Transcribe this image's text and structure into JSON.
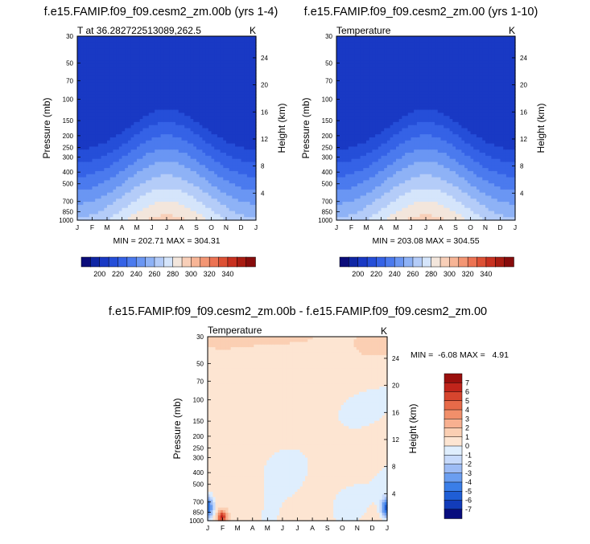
{
  "palette": {
    "t": [
      "#0b0c7a",
      "#0f26a4",
      "#1939c4",
      "#254ed8",
      "#3562e6",
      "#4b7aee",
      "#6a96f3",
      "#8eb2f6",
      "#b4ccf8",
      "#d5e5fb",
      "#f3e6dc",
      "#f8cfb8",
      "#f7b596",
      "#f39674",
      "#ec7353",
      "#dd5135",
      "#c83120",
      "#a91c12",
      "#870c0c"
    ],
    "d": [
      "#080d7e",
      "#123cba",
      "#1f5ed6",
      "#3a7ee8",
      "#6b9ef0",
      "#9dbcf5",
      "#c7dafb",
      "#dfeefd",
      "#fde5d2",
      "#fbcfb3",
      "#f8b090",
      "#f18f6a",
      "#e76a49",
      "#d6452e",
      "#c0241b",
      "#9a0f0d"
    ]
  },
  "panels": [
    {
      "name": "left",
      "title": "f.e15.FAMIP.f09_f09.cesm2_zm.00b (yrs 1-4)",
      "subtitle_left": "T at 36.282722513089,262.5",
      "subtitle_right": "K",
      "stats": "MIN = 202.71 MAX = 304.31",
      "ylabel": "Pressure (mb)",
      "y2label": "Height (km)"
    },
    {
      "name": "right",
      "title": "f.e15.FAMIP.f09_f09.cesm2_zm.00 (yrs 1-10)",
      "subtitle_left": "Temperature",
      "subtitle_right": "K",
      "stats": "MIN = 203.08 MAX = 304.55",
      "ylabel": "Pressure (mb)",
      "y2label": "Height (km)"
    },
    {
      "name": "diff",
      "title": "f.e15.FAMIP.f09_f09.cesm2_zm.00b - f.e15.FAMIP.f09_f09.cesm2_zm.00",
      "subtitle_left": "Temperature",
      "subtitle_right": "K",
      "stats": "MIN =  -6.08 MAX =   4.91",
      "ylabel": "Pressure (mb)",
      "y2label": "Height (km)"
    }
  ],
  "axes": {
    "months": [
      "J",
      "F",
      "M",
      "A",
      "M",
      "J",
      "J",
      "A",
      "S",
      "O",
      "N",
      "D",
      "J"
    ],
    "pressure_ticks": [
      "30",
      "50",
      "70",
      "100",
      "150",
      "200",
      "250",
      "300",
      "400",
      "500",
      "700",
      "850",
      "1000"
    ],
    "height_ticks": [
      "24",
      "20",
      "16",
      "12",
      "8",
      "4"
    ]
  },
  "colorbar_temp": {
    "labels": [
      "200",
      "220",
      "240",
      "260",
      "280",
      "300",
      "320",
      "340"
    ]
  },
  "colorbar_diff": {
    "labels": [
      "7",
      "6",
      "5",
      "4",
      "3",
      "2",
      "1",
      "0",
      "-1",
      "-2",
      "-3",
      "-4",
      "-5",
      "-6",
      "-7"
    ]
  },
  "chart_data": [
    {
      "type": "heatmap",
      "title": "f.e15.FAMIP.f09_f09.cesm2_zm.00b (yrs 1-4)",
      "variable": "T at 36.282722513089,262.5",
      "units": "K",
      "xlabel": "",
      "ylabel": "Pressure (mb)",
      "y2label": "Height (km)",
      "x": [
        "J",
        "F",
        "M",
        "A",
        "M",
        "J",
        "J",
        "A",
        "S",
        "O",
        "N",
        "D",
        "J"
      ],
      "y_pressure": [
        30,
        50,
        70,
        100,
        150,
        200,
        250,
        300,
        400,
        500,
        700,
        850,
        1000
      ],
      "y_log": true,
      "colorbar_levels": [
        200,
        220,
        240,
        260,
        280,
        300,
        320,
        340
      ],
      "min": 202.71,
      "max": 304.31
    },
    {
      "type": "heatmap",
      "title": "f.e15.FAMIP.f09_f09.cesm2_zm.00 (yrs 1-10)",
      "variable": "Temperature",
      "units": "K",
      "xlabel": "",
      "ylabel": "Pressure (mb)",
      "y2label": "Height (km)",
      "x": [
        "J",
        "F",
        "M",
        "A",
        "M",
        "J",
        "J",
        "A",
        "S",
        "O",
        "N",
        "D",
        "J"
      ],
      "y_pressure": [
        30,
        50,
        70,
        100,
        150,
        200,
        250,
        300,
        400,
        500,
        700,
        850,
        1000
      ],
      "y_log": true,
      "colorbar_levels": [
        200,
        220,
        240,
        260,
        280,
        300,
        320,
        340
      ],
      "min": 203.08,
      "max": 304.55
    },
    {
      "type": "heatmap",
      "title": "f.e15.FAMIP.f09_f09.cesm2_zm.00b - f.e15.FAMIP.f09_f09.cesm2_zm.00",
      "variable": "Temperature",
      "units": "K",
      "xlabel": "",
      "ylabel": "Pressure (mb)",
      "y2label": "Height (km)",
      "x": [
        "J",
        "F",
        "M",
        "A",
        "M",
        "J",
        "J",
        "A",
        "S",
        "O",
        "N",
        "D",
        "J"
      ],
      "y_pressure": [
        30,
        50,
        70,
        100,
        150,
        200,
        250,
        300,
        400,
        500,
        700,
        850,
        1000
      ],
      "y_log": true,
      "colorbar_levels": [
        -7,
        -6,
        -5,
        -4,
        -3,
        -2,
        -1,
        0,
        1,
        2,
        3,
        4,
        5,
        6,
        7
      ],
      "min": -6.08,
      "max": 4.91
    }
  ]
}
